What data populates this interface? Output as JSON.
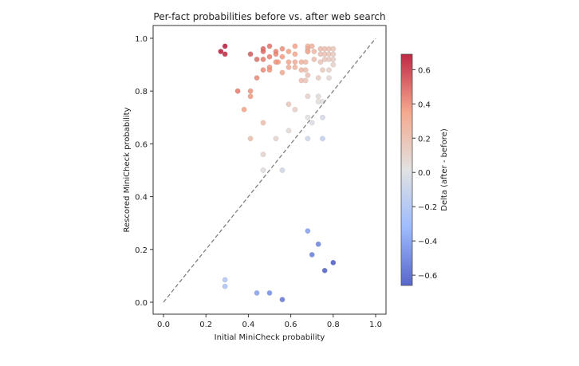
{
  "chart_data": {
    "type": "scatter",
    "title": "Per-fact probabilities before vs. after web search",
    "xlabel": "Initial MiniCheck probability",
    "ylabel": "Rescored MiniCheck probability",
    "xlim": [
      -0.05,
      1.05
    ],
    "ylim": [
      -0.05,
      1.05
    ],
    "xticks": [
      "0.0",
      "0.2",
      "0.4",
      "0.6",
      "0.8",
      "1.0"
    ],
    "yticks": [
      "0.0",
      "0.2",
      "0.4",
      "0.6",
      "0.8",
      "1.0"
    ],
    "reference_line": {
      "from": [
        0,
        0
      ],
      "to": [
        1,
        1
      ],
      "style": "dashed",
      "color": "#808080"
    },
    "colorbar": {
      "label": "Delta (after - before)",
      "colormap": "coolwarm",
      "range": [
        -0.66,
        0.69
      ],
      "ticks": [
        "-0.6",
        "-0.4",
        "-0.2",
        "0.0",
        "0.2",
        "0.4",
        "0.6"
      ]
    },
    "grid": false,
    "points": [
      {
        "x": 0.27,
        "y": 0.95
      },
      {
        "x": 0.29,
        "y": 0.97
      },
      {
        "x": 0.29,
        "y": 0.94
      },
      {
        "x": 0.41,
        "y": 0.94
      },
      {
        "x": 0.47,
        "y": 0.96
      },
      {
        "x": 0.47,
        "y": 0.95
      },
      {
        "x": 0.5,
        "y": 0.97
      },
      {
        "x": 0.53,
        "y": 0.95
      },
      {
        "x": 0.44,
        "y": 0.92
      },
      {
        "x": 0.47,
        "y": 0.92
      },
      {
        "x": 0.5,
        "y": 0.93
      },
      {
        "x": 0.53,
        "y": 0.91
      },
      {
        "x": 0.5,
        "y": 0.89
      },
      {
        "x": 0.5,
        "y": 0.88
      },
      {
        "x": 0.47,
        "y": 0.88
      },
      {
        "x": 0.44,
        "y": 0.85
      },
      {
        "x": 0.53,
        "y": 0.94
      },
      {
        "x": 0.56,
        "y": 0.96
      },
      {
        "x": 0.59,
        "y": 0.95
      },
      {
        "x": 0.62,
        "y": 0.97
      },
      {
        "x": 0.62,
        "y": 0.94
      },
      {
        "x": 0.68,
        "y": 0.97
      },
      {
        "x": 0.68,
        "y": 0.96
      },
      {
        "x": 0.68,
        "y": 0.95
      },
      {
        "x": 0.54,
        "y": 0.91
      },
      {
        "x": 0.56,
        "y": 0.93
      },
      {
        "x": 0.59,
        "y": 0.91
      },
      {
        "x": 0.62,
        "y": 0.91
      },
      {
        "x": 0.65,
        "y": 0.91
      },
      {
        "x": 0.67,
        "y": 0.91
      },
      {
        "x": 0.56,
        "y": 0.87
      },
      {
        "x": 0.59,
        "y": 0.89
      },
      {
        "x": 0.62,
        "y": 0.89
      },
      {
        "x": 0.65,
        "y": 0.88
      },
      {
        "x": 0.67,
        "y": 0.88
      },
      {
        "x": 0.65,
        "y": 0.84
      },
      {
        "x": 0.67,
        "y": 0.84
      },
      {
        "x": 0.7,
        "y": 0.97
      },
      {
        "x": 0.68,
        "y": 0.95
      },
      {
        "x": 0.71,
        "y": 0.95
      },
      {
        "x": 0.74,
        "y": 0.96
      },
      {
        "x": 0.76,
        "y": 0.96
      },
      {
        "x": 0.78,
        "y": 0.96
      },
      {
        "x": 0.8,
        "y": 0.96
      },
      {
        "x": 0.74,
        "y": 0.94
      },
      {
        "x": 0.76,
        "y": 0.94
      },
      {
        "x": 0.78,
        "y": 0.94
      },
      {
        "x": 0.8,
        "y": 0.94
      },
      {
        "x": 0.71,
        "y": 0.92
      },
      {
        "x": 0.76,
        "y": 0.92
      },
      {
        "x": 0.78,
        "y": 0.92
      },
      {
        "x": 0.8,
        "y": 0.92
      },
      {
        "x": 0.74,
        "y": 0.91
      },
      {
        "x": 0.8,
        "y": 0.9
      },
      {
        "x": 0.75,
        "y": 0.88
      },
      {
        "x": 0.78,
        "y": 0.88
      },
      {
        "x": 0.68,
        "y": 0.86
      },
      {
        "x": 0.73,
        "y": 0.85
      },
      {
        "x": 0.78,
        "y": 0.85
      },
      {
        "x": 0.35,
        "y": 0.8
      },
      {
        "x": 0.41,
        "y": 0.8
      },
      {
        "x": 0.41,
        "y": 0.78
      },
      {
        "x": 0.38,
        "y": 0.73
      },
      {
        "x": 0.59,
        "y": 0.75
      },
      {
        "x": 0.62,
        "y": 0.73
      },
      {
        "x": 0.68,
        "y": 0.78
      },
      {
        "x": 0.73,
        "y": 0.78
      },
      {
        "x": 0.73,
        "y": 0.76
      },
      {
        "x": 0.75,
        "y": 0.76
      },
      {
        "x": 0.68,
        "y": 0.7
      },
      {
        "x": 0.75,
        "y": 0.7
      },
      {
        "x": 0.7,
        "y": 0.68
      },
      {
        "x": 0.47,
        "y": 0.68
      },
      {
        "x": 0.59,
        "y": 0.65
      },
      {
        "x": 0.41,
        "y": 0.62
      },
      {
        "x": 0.53,
        "y": 0.62
      },
      {
        "x": 0.68,
        "y": 0.62
      },
      {
        "x": 0.75,
        "y": 0.62
      },
      {
        "x": 0.47,
        "y": 0.56
      },
      {
        "x": 0.47,
        "y": 0.5
      },
      {
        "x": 0.56,
        "y": 0.5
      },
      {
        "x": 0.68,
        "y": 0.27
      },
      {
        "x": 0.73,
        "y": 0.22
      },
      {
        "x": 0.7,
        "y": 0.18
      },
      {
        "x": 0.8,
        "y": 0.15
      },
      {
        "x": 0.76,
        "y": 0.12
      },
      {
        "x": 0.29,
        "y": 0.085
      },
      {
        "x": 0.29,
        "y": 0.06
      },
      {
        "x": 0.44,
        "y": 0.035
      },
      {
        "x": 0.5,
        "y": 0.035
      },
      {
        "x": 0.56,
        "y": 0.01
      }
    ]
  }
}
